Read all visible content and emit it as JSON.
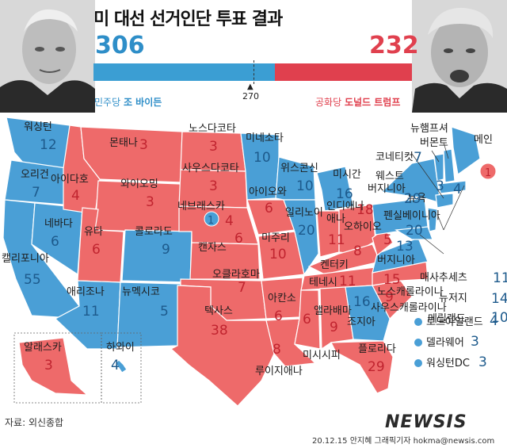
{
  "title": "미 대선 선거인단 투표 결과",
  "biden": {
    "party_name": "민주당",
    "name": "조 바이든",
    "votes": "306",
    "color": "#3b9ed3"
  },
  "trump": {
    "party_name": "공화당",
    "name": "도널드 트럼프",
    "votes": "232",
    "color": "#e0404e"
  },
  "threshold": {
    "marker": "▲",
    "value": "270"
  },
  "states": {
    "wa": {
      "name": "워싱턴",
      "votes": "12"
    },
    "or": {
      "name": "오리건",
      "votes": "7"
    },
    "ca": {
      "name": "캘리포니아",
      "votes": "55"
    },
    "nv": {
      "name": "네바다",
      "votes": "6"
    },
    "id": {
      "name": "아이다호",
      "votes": "4"
    },
    "mt": {
      "name": "몬태나",
      "votes": "3"
    },
    "wy": {
      "name": "와이오밍",
      "votes": "3"
    },
    "ut": {
      "name": "유타",
      "votes": "6"
    },
    "co": {
      "name": "콜로라도",
      "votes": "9"
    },
    "az": {
      "name": "애리조나",
      "votes": "11"
    },
    "nm": {
      "name": "뉴멕시코",
      "votes": "5"
    },
    "nd": {
      "name": "노스다코타",
      "votes": "3"
    },
    "sd": {
      "name": "사우스다코타",
      "votes": "3"
    },
    "ne": {
      "name": "네브래스카",
      "votes_b": "1",
      "votes_r": "4"
    },
    "ks": {
      "name": "캔자스",
      "votes": "6"
    },
    "ok": {
      "name": "오클라호마",
      "votes": "7"
    },
    "tx": {
      "name": "텍사스",
      "votes": "38"
    },
    "mn": {
      "name": "미네소타",
      "votes": "10"
    },
    "ia": {
      "name": "아이오와",
      "votes": "6"
    },
    "mo": {
      "name": "미주리",
      "votes": "10"
    },
    "ar": {
      "name": "아칸소",
      "votes": "6"
    },
    "la": {
      "name": "루이지애나",
      "votes": "8"
    },
    "wi": {
      "name": "위스콘신",
      "votes": "10"
    },
    "il": {
      "name": "일리노이",
      "votes": "20"
    },
    "mi": {
      "name": "미시간",
      "votes": "16"
    },
    "in": {
      "name": "인디애나",
      "votes": "11"
    },
    "oh": {
      "name": "오하이오",
      "votes": "18"
    },
    "ky": {
      "name": "켄터키",
      "votes": "8"
    },
    "tn": {
      "name": "테네시",
      "votes": "11"
    },
    "ms": {
      "name": "미시시피",
      "votes": "6"
    },
    "al": {
      "name": "앨라배마",
      "votes": "9"
    },
    "ga": {
      "name": "조지아",
      "votes": "16"
    },
    "fl": {
      "name": "플로리다",
      "votes": "29"
    },
    "sc": {
      "name": "사우스캐롤라이나",
      "votes": "9"
    },
    "nc": {
      "name": "노스캐롤라이나",
      "votes": "15"
    },
    "va": {
      "name": "버지니아",
      "votes": "13"
    },
    "wv": {
      "name": "웨스트\n버지니아",
      "votes": "5"
    },
    "pa": {
      "name": "펜실베이니아",
      "votes": "20"
    },
    "ny": {
      "name": "뉴욕",
      "votes": "29"
    },
    "vt": {
      "name": "버몬트",
      "votes": "3"
    },
    "nh": {
      "name": "뉴햄프셔",
      "votes": "4"
    },
    "me": {
      "name": "메인",
      "votes_r": "1"
    },
    "ct": {
      "name": "코네티컷",
      "votes": "7"
    },
    "ma": {
      "name": "매사추세츠",
      "votes": "11"
    },
    "nj": {
      "name": "뉴저지",
      "votes": "14"
    },
    "md": {
      "name": "메릴랜드",
      "votes": "10"
    },
    "ri": {
      "name": "로드아일랜드",
      "votes": "4"
    },
    "de": {
      "name": "델라웨어",
      "votes": "3"
    },
    "dc": {
      "name": "워싱턴DC",
      "votes": "3"
    },
    "ak": {
      "name": "알래스카",
      "votes": "3"
    },
    "hi": {
      "name": "하와이",
      "votes": "4"
    }
  },
  "source": "자료: 외신종합",
  "logo": "NEWSIS",
  "credit": "20.12.15 안지혜 그래픽기자 hokma@newsis.com",
  "colors": {
    "democrat": "#4a9fd6",
    "republican": "#ee6a6a",
    "dem_text": "#1d5a8c",
    "rep_text": "#c0242f"
  }
}
